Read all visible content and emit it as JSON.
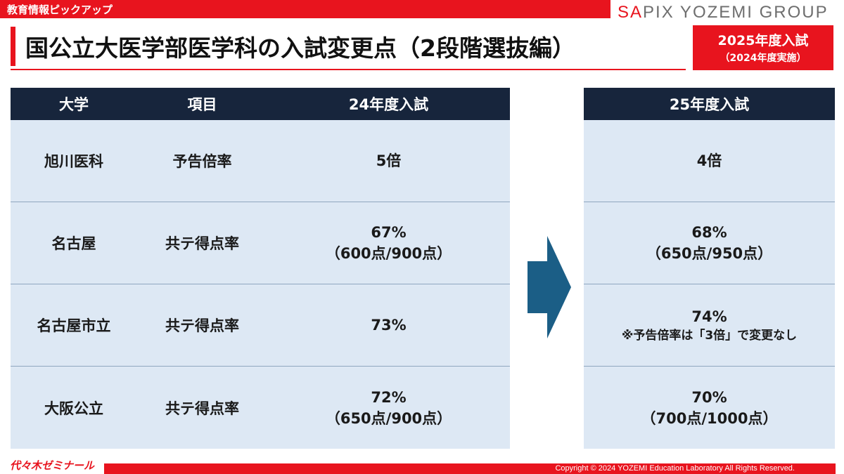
{
  "header": {
    "section_label": "教育情報ピックアップ",
    "group_logo_accent": "SA",
    "group_logo_rest": "PIX YOZEMI GROUP"
  },
  "title": {
    "text": "国公立大医学部医学科の入試変更点（2段階選抜編）",
    "badge_main": "2025年度入試",
    "badge_sub": "（2024年度実施）"
  },
  "table_left": {
    "headers": [
      "大学",
      "項目",
      "24年度入試"
    ],
    "rows": [
      {
        "university": "旭川医科",
        "item": "予告倍率",
        "value": "5倍",
        "detail": ""
      },
      {
        "university": "名古屋",
        "item": "共テ得点率",
        "value": "67%",
        "detail": "（600点/900点）"
      },
      {
        "university": "名古屋市立",
        "item": "共テ得点率",
        "value": "73%",
        "detail": ""
      },
      {
        "university": "大阪公立",
        "item": "共テ得点率",
        "value": "72%",
        "detail": "（650点/900点）"
      }
    ]
  },
  "table_right": {
    "header": "25年度入試",
    "rows": [
      {
        "value": "4倍",
        "detail": "",
        "note": ""
      },
      {
        "value": "68%",
        "detail": "（650点/950点）",
        "note": ""
      },
      {
        "value": "74%",
        "detail": "",
        "note": "※予告倍率は「3倍」で変更なし"
      },
      {
        "value": "70%",
        "detail": "（700点/1000点）",
        "note": ""
      }
    ]
  },
  "arrow": {
    "icon": "right-arrow-icon",
    "color": "#1b5e86"
  },
  "footer": {
    "logo": "代々木ゼミナール",
    "copyright": "Copyright © 2024 YOZEMI Education Laboratory All Rights Reserved."
  },
  "colors": {
    "accent": "#e8141e",
    "header_bg": "#17253c",
    "row_bg": "#dde8f4"
  }
}
